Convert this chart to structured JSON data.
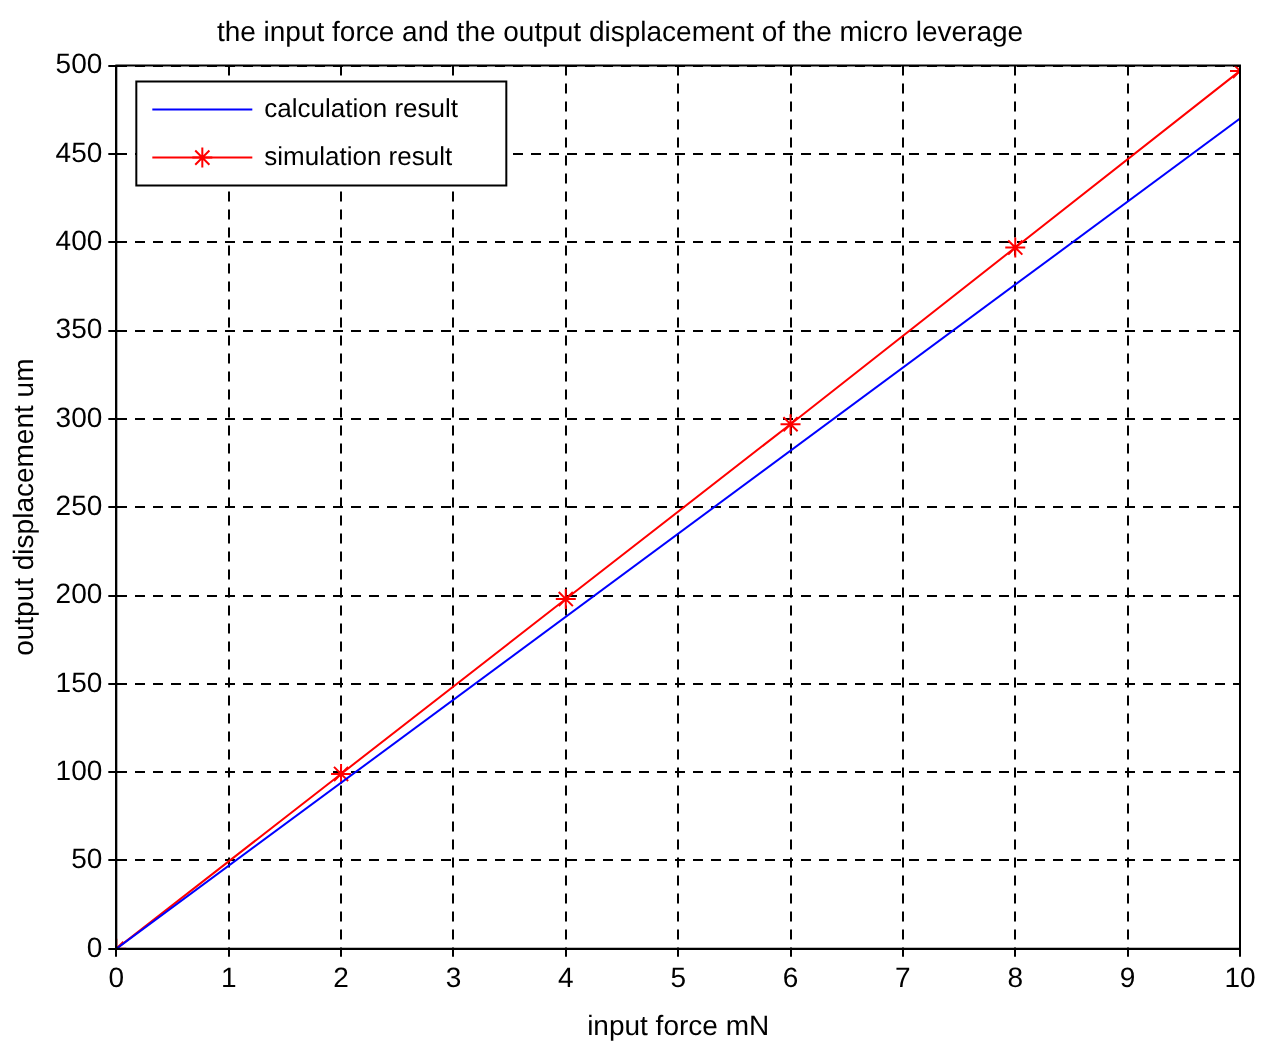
{
  "chart_data": {
    "type": "line",
    "title": "the input force and the output displacement of the micro leverage",
    "xlabel": "input force mN",
    "ylabel": "output displacement um",
    "xlim": [
      0,
      10
    ],
    "xticks": [
      0,
      1,
      2,
      3,
      4,
      5,
      6,
      7,
      8,
      9,
      10
    ],
    "ylim": [
      0,
      500
    ],
    "yticks": [
      0,
      50,
      100,
      150,
      200,
      250,
      300,
      350,
      400,
      450,
      500
    ],
    "grid": true,
    "legend": "top left",
    "line_style": "solid",
    "series": [
      {
        "name": "calculation result",
        "color": "#0000ff",
        "x": [
          0,
          10
        ],
        "values": [
          0,
          470
        ],
        "marker": "none"
      },
      {
        "name": "simulation result",
        "color": "#ff0000",
        "x": [
          0,
          2,
          4,
          6,
          8,
          10
        ],
        "values": [
          0,
          99,
          198,
          297,
          397,
          497
        ],
        "marker": "cross"
      }
    ]
  }
}
